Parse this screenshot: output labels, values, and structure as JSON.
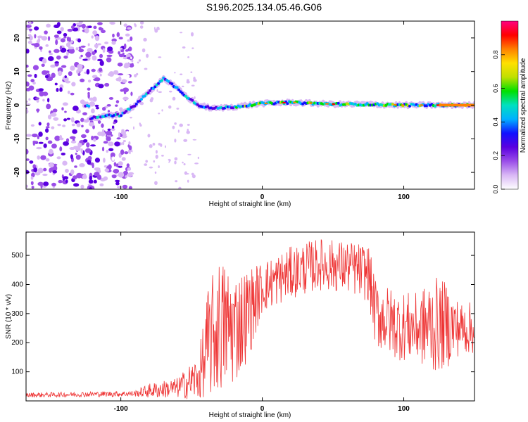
{
  "figure": {
    "title": "S196.2025.134.05.46.G06"
  },
  "chart_data": [
    {
      "type": "heatmap",
      "xlabel": "Height of straight line (km)",
      "ylabel": "Frequency (Hz)",
      "xlim": [
        -167,
        150
      ],
      "ylim": [
        -25,
        25
      ],
      "xticks": [
        -100,
        0,
        100
      ],
      "yticks": [
        -20,
        -10,
        0,
        10,
        20
      ],
      "colorbar": {
        "label": "Normalized spectral amplitude",
        "range": [
          0,
          1
        ],
        "ticks": [
          0.0,
          0.2,
          0.4,
          0.6,
          0.8
        ],
        "colors": [
          "#ffffff",
          "#d9b8f5",
          "#9a4de8",
          "#5a00e0",
          "#1010ff",
          "#00b0ff",
          "#00e0c0",
          "#00e000",
          "#c0e000",
          "#ffe000",
          "#ff8000",
          "#ff0000",
          "#ff0080"
        ]
      },
      "ridge": [
        {
          "x": -122,
          "f": -4
        },
        {
          "x": -110,
          "f": -3
        },
        {
          "x": -100,
          "f": -3
        },
        {
          "x": -90,
          "f": 0
        },
        {
          "x": -80,
          "f": 4
        },
        {
          "x": -70,
          "f": 8
        },
        {
          "x": -60,
          "f": 5
        },
        {
          "x": -52,
          "f": 2
        },
        {
          "x": -45,
          "f": 0
        },
        {
          "x": -35,
          "f": -1
        },
        {
          "x": -20,
          "f": -0.5
        },
        {
          "x": 0,
          "f": 0.5
        },
        {
          "x": 20,
          "f": 0.8
        },
        {
          "x": 50,
          "f": 0.3
        },
        {
          "x": 80,
          "f": 0.2
        },
        {
          "x": 100,
          "f": 0
        },
        {
          "x": 150,
          "f": 0
        }
      ]
    },
    {
      "type": "line",
      "xlabel": "Height of straight line (km)",
      "ylabel": "SNR (10 * v/v)",
      "xlim": [
        -167,
        150
      ],
      "ylim": [
        0,
        580
      ],
      "xticks": [
        -100,
        0,
        100
      ],
      "yticks": [
        100,
        200,
        300,
        400,
        500
      ],
      "color": "#ee3333",
      "envelope": [
        {
          "x": -167,
          "base": 20,
          "amp": 8
        },
        {
          "x": -90,
          "base": 25,
          "amp": 10
        },
        {
          "x": -80,
          "base": 35,
          "amp": 25
        },
        {
          "x": -60,
          "base": 45,
          "amp": 35
        },
        {
          "x": -45,
          "base": 80,
          "amp": 80
        },
        {
          "x": -38,
          "base": 200,
          "amp": 200
        },
        {
          "x": -30,
          "base": 260,
          "amp": 240
        },
        {
          "x": -20,
          "base": 250,
          "amp": 200
        },
        {
          "x": -10,
          "base": 300,
          "amp": 160
        },
        {
          "x": 0,
          "base": 390,
          "amp": 90
        },
        {
          "x": 20,
          "base": 440,
          "amp": 90
        },
        {
          "x": 40,
          "base": 470,
          "amp": 90
        },
        {
          "x": 60,
          "base": 460,
          "amp": 90
        },
        {
          "x": 75,
          "base": 440,
          "amp": 100
        },
        {
          "x": 80,
          "base": 300,
          "amp": 120
        },
        {
          "x": 95,
          "base": 260,
          "amp": 120
        },
        {
          "x": 110,
          "base": 250,
          "amp": 120
        },
        {
          "x": 120,
          "base": 260,
          "amp": 170
        },
        {
          "x": 130,
          "base": 260,
          "amp": 150
        },
        {
          "x": 140,
          "base": 250,
          "amp": 90
        },
        {
          "x": 150,
          "base": 250,
          "amp": 90
        }
      ]
    }
  ]
}
